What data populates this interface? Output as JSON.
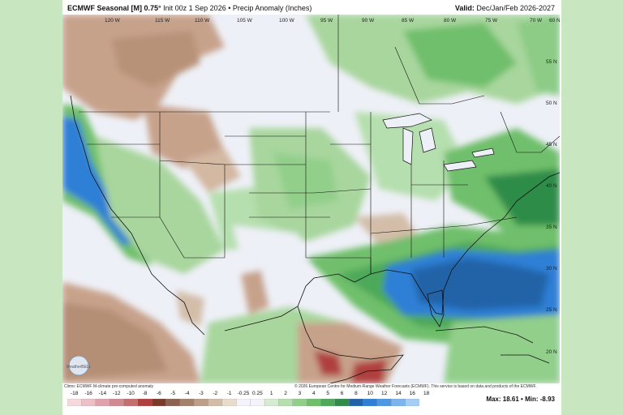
{
  "header": {
    "model": "ECMWF Seasonal [M] 0.75°",
    "init": "Init 00z 1 Sep 2026",
    "bullet": "•",
    "field": "Precip Anomaly (Inches)",
    "valid_label": "Valid:",
    "valid_value": "Dec/Jan/Feb 2026-2027"
  },
  "footer": {
    "climo": "Climo: ECMWF M-climate pre-computed anomaly",
    "copyright": "© 2026 European Centre for Medium-Range Weather Forecasts (ECMWF). This service is based on data and products of the ECMWF.",
    "max_label": "Max:",
    "max_value": "18.61",
    "min_label": "Min:",
    "min_value": "-8.93",
    "sep": "•"
  },
  "logo_text": "WeatherBELL",
  "longitude_labels": [
    "120 W",
    "115 W",
    "110 W",
    "105 W",
    "100 W",
    "95 W",
    "90 W",
    "85 W",
    "80 W",
    "75 W",
    "70 W",
    "60 N"
  ],
  "latitude_labels": [
    "55 N",
    "50 N",
    "45 N",
    "40 N",
    "35 N",
    "30 N",
    "25 N",
    "20 N"
  ],
  "colorbar": {
    "labels": [
      "-18",
      "-16",
      "-14",
      "-12",
      "-10",
      "-8",
      "-6",
      "-5",
      "-4",
      "-3",
      "-2",
      "-1",
      "-0.25",
      "0.25",
      "1",
      "2",
      "3",
      "4",
      "5",
      "6",
      "8",
      "10",
      "12",
      "14",
      "16",
      "18"
    ],
    "colors": [
      "#f5d9de",
      "#edc0c8",
      "#e0a3ad",
      "#d08a92",
      "#c46e6e",
      "#b04040",
      "#7a3a2a",
      "#8c6350",
      "#a3826b",
      "#bb9f88",
      "#d3bda9",
      "#e8dccd",
      "#f3f3f9",
      "#f3f3f9",
      "#d6ecd2",
      "#b5dfae",
      "#92cf8b",
      "#6fbf6c",
      "#4ea95a",
      "#2f8c4a",
      "#2163a8",
      "#2f7fd6",
      "#4a98e6",
      "#7bb4ee",
      "#a6cdf3"
    ]
  },
  "colors": {
    "wet": "#3a8bd8",
    "dry": "#c7a28b",
    "neutral": "#eef0f7",
    "lightgreen": "#a8d69d",
    "green": "#6fbf6c"
  }
}
